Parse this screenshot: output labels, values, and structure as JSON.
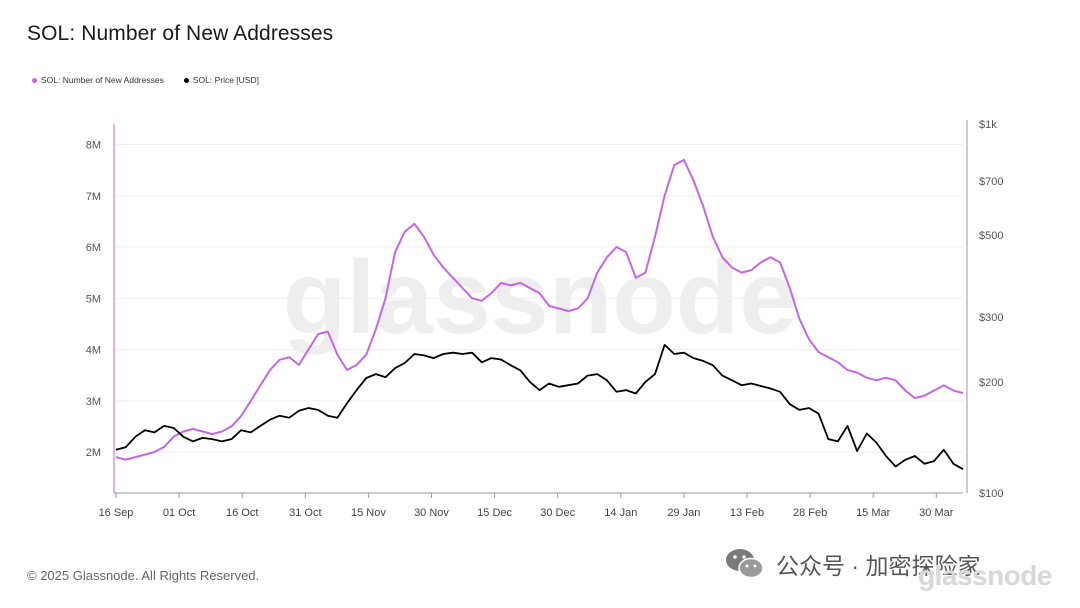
{
  "title": "SOL: Number of New Addresses",
  "legend": [
    {
      "label": "SOL: Number of New Addresses",
      "color": "#c466e8"
    },
    {
      "label": "SOL: Price [USD]",
      "color": "#000000"
    }
  ],
  "watermark": "glassnode",
  "footer": "© 2025 Glassnode. All Rights Reserved.",
  "overlay": {
    "text": "公众号 · 加密探险家",
    "brand": "glassnode"
  },
  "chart_data": {
    "type": "line",
    "title": "SOL: Number of New Addresses",
    "xlabel": "",
    "ylabel": "",
    "x_ticks": [
      "16 Sep",
      "01 Oct",
      "16 Oct",
      "31 Oct",
      "15 Nov",
      "30 Nov",
      "15 Dec",
      "30 Dec",
      "14 Jan",
      "29 Jan",
      "13 Feb",
      "28 Feb",
      "15 Mar",
      "30 Mar"
    ],
    "left_axis": {
      "ticks": [
        "8M",
        "7M",
        "6M",
        "5M",
        "4M",
        "3M",
        "2M"
      ],
      "range_millions": [
        1.2,
        8.4
      ],
      "unit": "M"
    },
    "right_axis": {
      "ticks": [
        "$1k",
        "$700",
        "$500",
        "$300",
        "$200",
        "$100"
      ],
      "tick_values": [
        1000,
        700,
        500,
        300,
        200,
        100
      ],
      "scale": "log",
      "range": [
        100,
        1000
      ]
    },
    "series": [
      {
        "name": "SOL: Number of New Addresses",
        "axis": "left",
        "color": "#c466e8",
        "unit": "millions",
        "values": [
          1.9,
          1.85,
          1.9,
          1.95,
          2.0,
          2.1,
          2.3,
          2.4,
          2.45,
          2.4,
          2.35,
          2.4,
          2.5,
          2.7,
          3.0,
          3.3,
          3.6,
          3.8,
          3.85,
          3.7,
          4.0,
          4.3,
          4.35,
          3.9,
          3.6,
          3.7,
          3.9,
          4.4,
          5.0,
          5.9,
          6.3,
          6.45,
          6.2,
          5.85,
          5.6,
          5.4,
          5.2,
          5.0,
          4.95,
          5.1,
          5.3,
          5.25,
          5.3,
          5.2,
          5.1,
          4.85,
          4.8,
          4.75,
          4.8,
          5.0,
          5.5,
          5.8,
          6.0,
          5.9,
          5.4,
          5.5,
          6.2,
          7.0,
          7.6,
          7.7,
          7.3,
          6.8,
          6.2,
          5.8,
          5.6,
          5.5,
          5.55,
          5.7,
          5.8,
          5.7,
          5.2,
          4.6,
          4.2,
          3.95,
          3.85,
          3.75,
          3.6,
          3.55,
          3.45,
          3.4,
          3.45,
          3.4,
          3.2,
          3.05,
          3.1,
          3.2,
          3.3,
          3.2,
          3.15
        ]
      },
      {
        "name": "SOL: Price [USD]",
        "axis": "right",
        "color": "#000000",
        "unit": "USD",
        "values": [
          131,
          133,
          142,
          148,
          146,
          152,
          150,
          142,
          138,
          141,
          140,
          138,
          140,
          148,
          146,
          152,
          158,
          162,
          160,
          167,
          170,
          168,
          162,
          160,
          175,
          190,
          205,
          210,
          206,
          218,
          225,
          238,
          236,
          232,
          238,
          240,
          238,
          240,
          226,
          232,
          230,
          222,
          215,
          200,
          190,
          198,
          194,
          196,
          198,
          208,
          210,
          202,
          188,
          190,
          186,
          200,
          210,
          252,
          238,
          240,
          232,
          228,
          222,
          208,
          202,
          196,
          198,
          195,
          192,
          188,
          174,
          168,
          170,
          164,
          140,
          138,
          152,
          130,
          145,
          137,
          126,
          118,
          123,
          126,
          120,
          122,
          131,
          120,
          116
        ]
      }
    ]
  }
}
